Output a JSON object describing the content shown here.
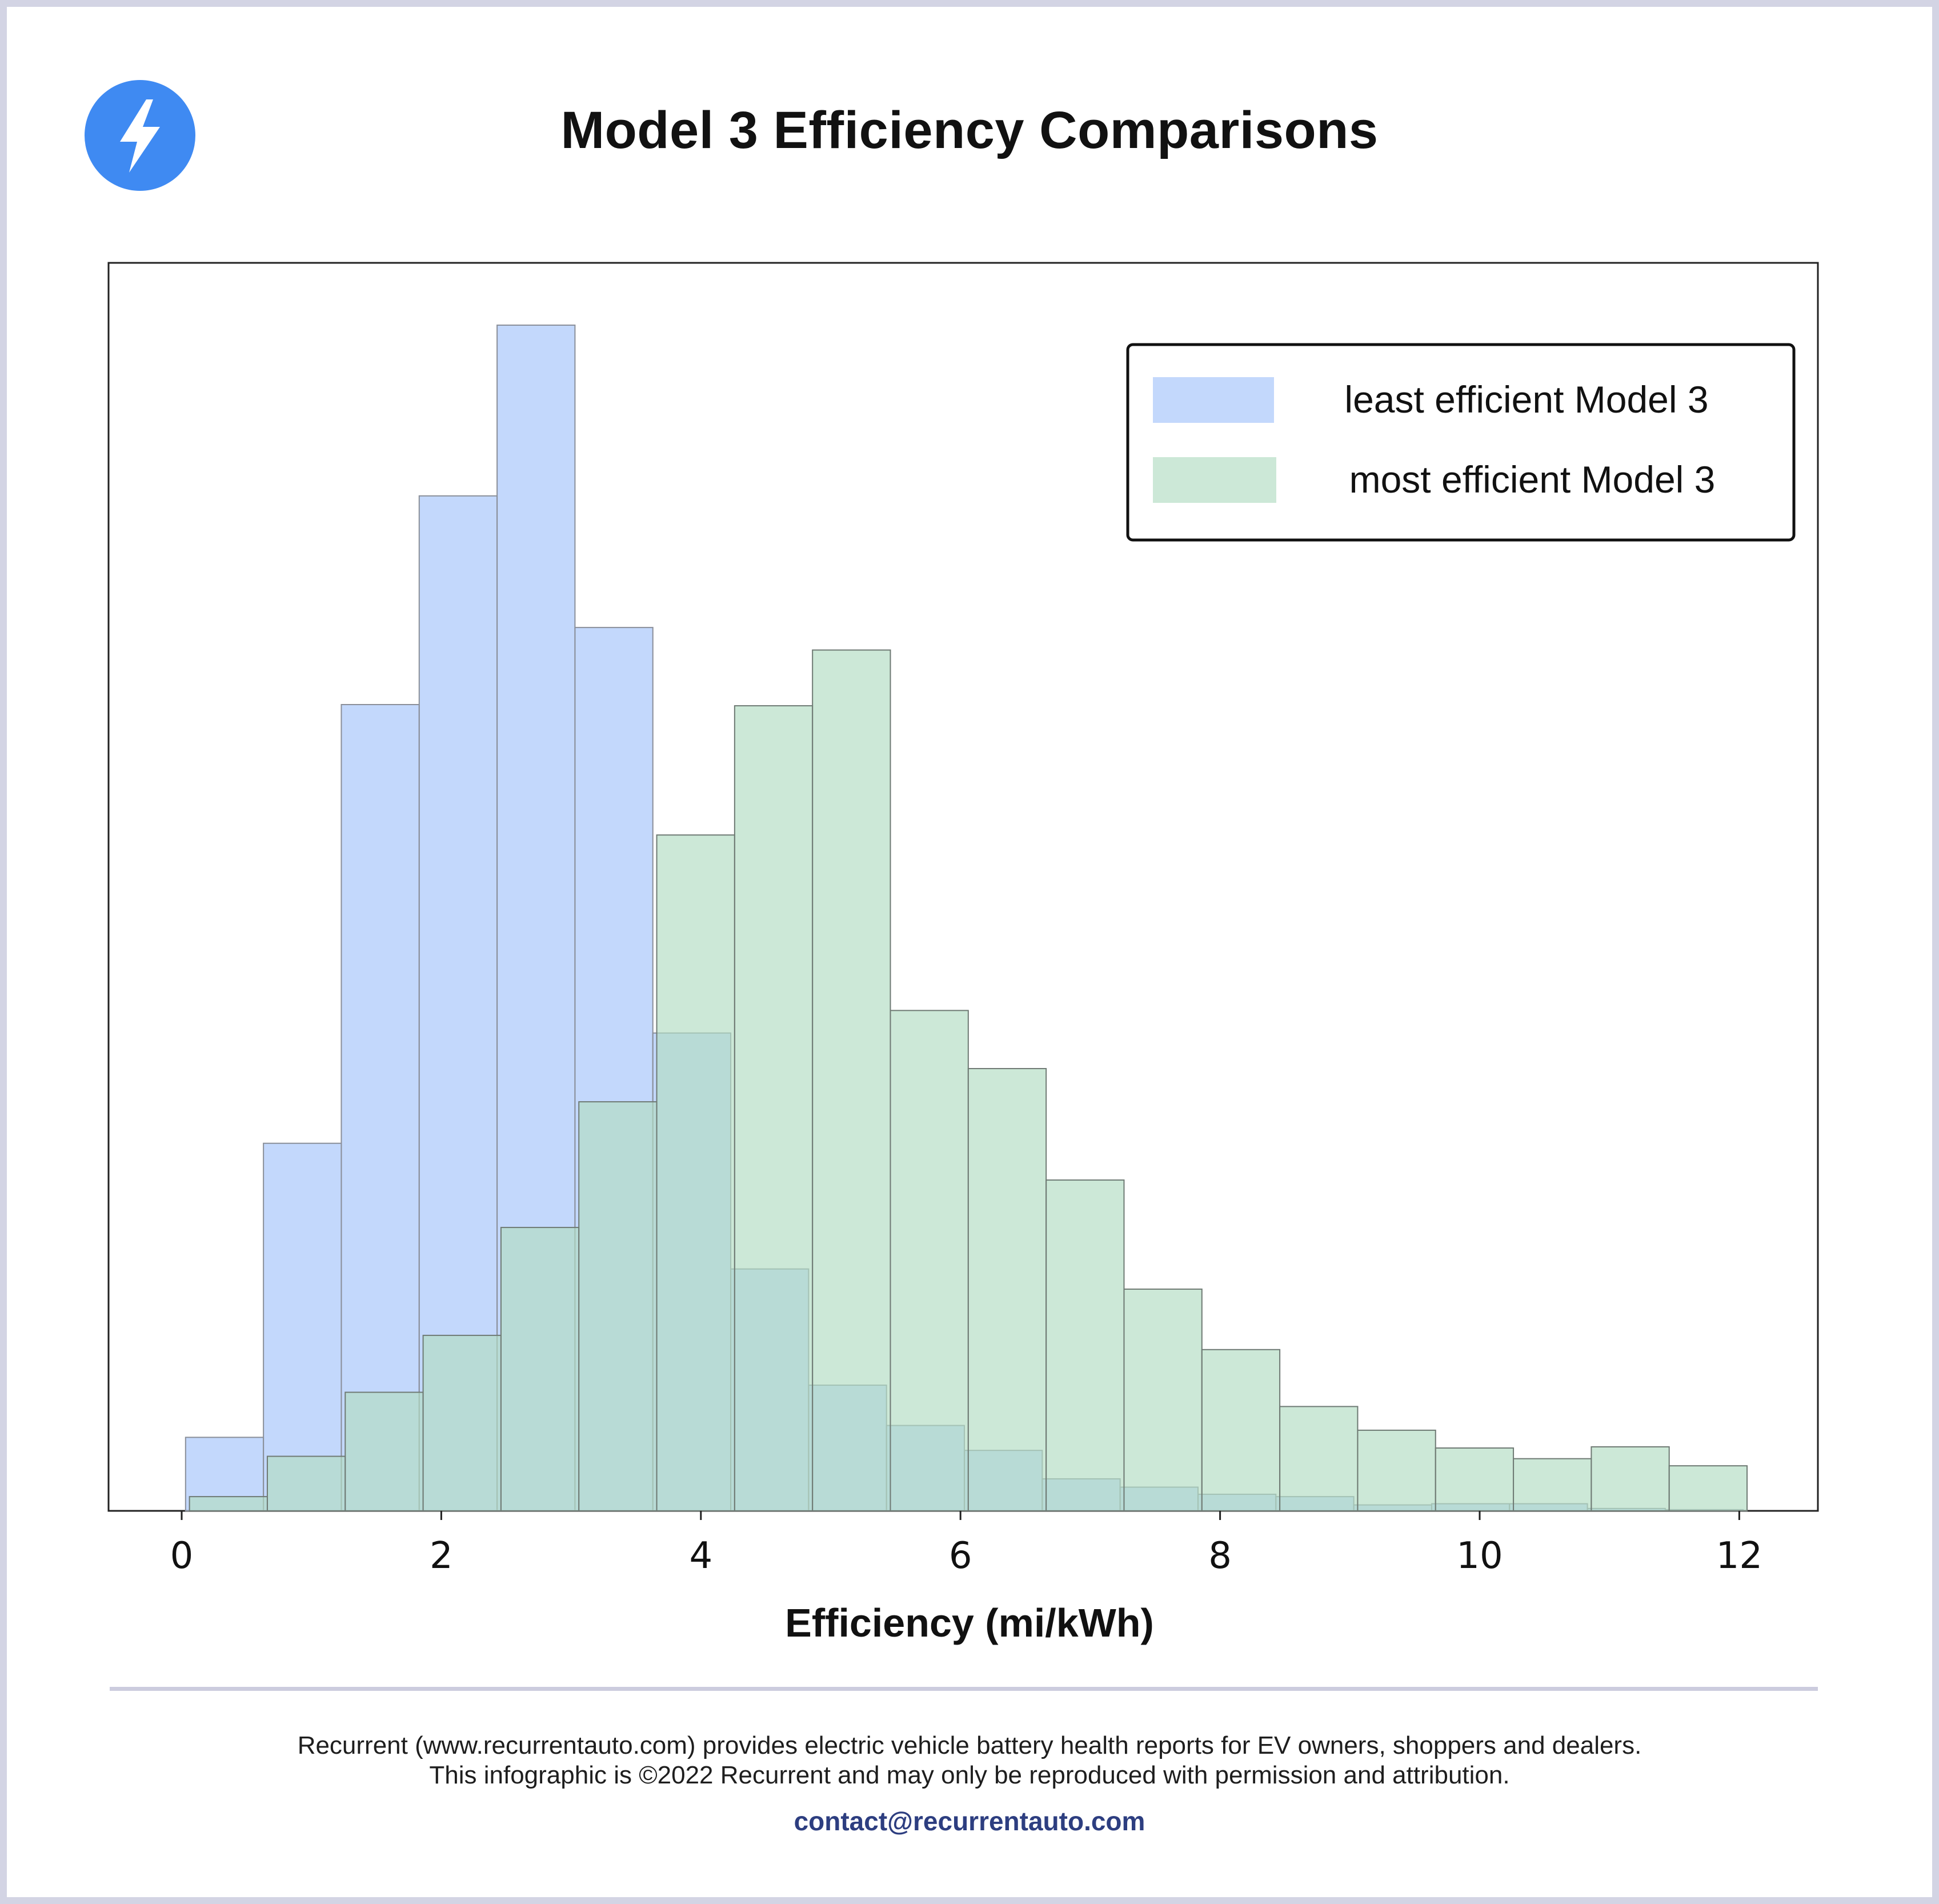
{
  "header": {
    "title": "Model 3 Efficiency Comparisons",
    "logo_icon": "lightning-bolt-icon",
    "logo_color": "#3f8af2"
  },
  "chart_data": {
    "type": "histogram",
    "xlabel": "Efficiency (mi/kWh)",
    "ylabel": "",
    "xlim": [
      -0.7,
      15.3
    ],
    "x_ticks": [
      0,
      2,
      4,
      6,
      8,
      10,
      12
    ],
    "ylim": [
      0,
      100
    ],
    "grid": false,
    "legend_position": "top-right",
    "series": [
      {
        "name": "least efficient Model 3",
        "color": "#aac8fb",
        "bin_edges": [
          0.03,
          0.63,
          1.23,
          1.83,
          2.43,
          3.03,
          3.63,
          4.23,
          4.83,
          5.43,
          6.03,
          6.63,
          7.23,
          7.83,
          8.43,
          9.03,
          9.63,
          10.23,
          10.83,
          11.43,
          12.03
        ],
        "values": [
          6.2,
          31.0,
          68.0,
          85.6,
          100.0,
          74.5,
          40.3,
          20.4,
          10.6,
          7.2,
          5.1,
          2.7,
          2.0,
          1.4,
          1.2,
          0.5,
          0.6,
          0.6,
          0.2,
          0.1
        ]
      },
      {
        "name": "most efficient Model 3",
        "color": "#b1dcc2",
        "bin_edges": [
          0.06,
          0.66,
          1.26,
          1.86,
          2.46,
          3.06,
          3.66,
          4.26,
          4.86,
          5.46,
          6.06,
          6.66,
          7.26,
          7.86,
          8.46,
          9.06,
          9.66,
          10.26,
          10.86,
          11.46,
          12.06
        ],
        "values": [
          1.2,
          4.6,
          10.0,
          14.8,
          23.9,
          34.5,
          57.0,
          67.9,
          72.6,
          42.2,
          37.3,
          27.9,
          18.7,
          13.6,
          8.8,
          6.8,
          5.3,
          4.4,
          5.4,
          3.8
        ]
      }
    ]
  },
  "footer": {
    "line1": "Recurrent (www.recurrentauto.com) provides electric vehicle battery health reports for EV owners, shoppers and dealers.",
    "line2": "This infographic is ©2022 Recurrent and may only be reproduced with permission and attribution.",
    "contact": "contact@recurrentauto.com"
  }
}
